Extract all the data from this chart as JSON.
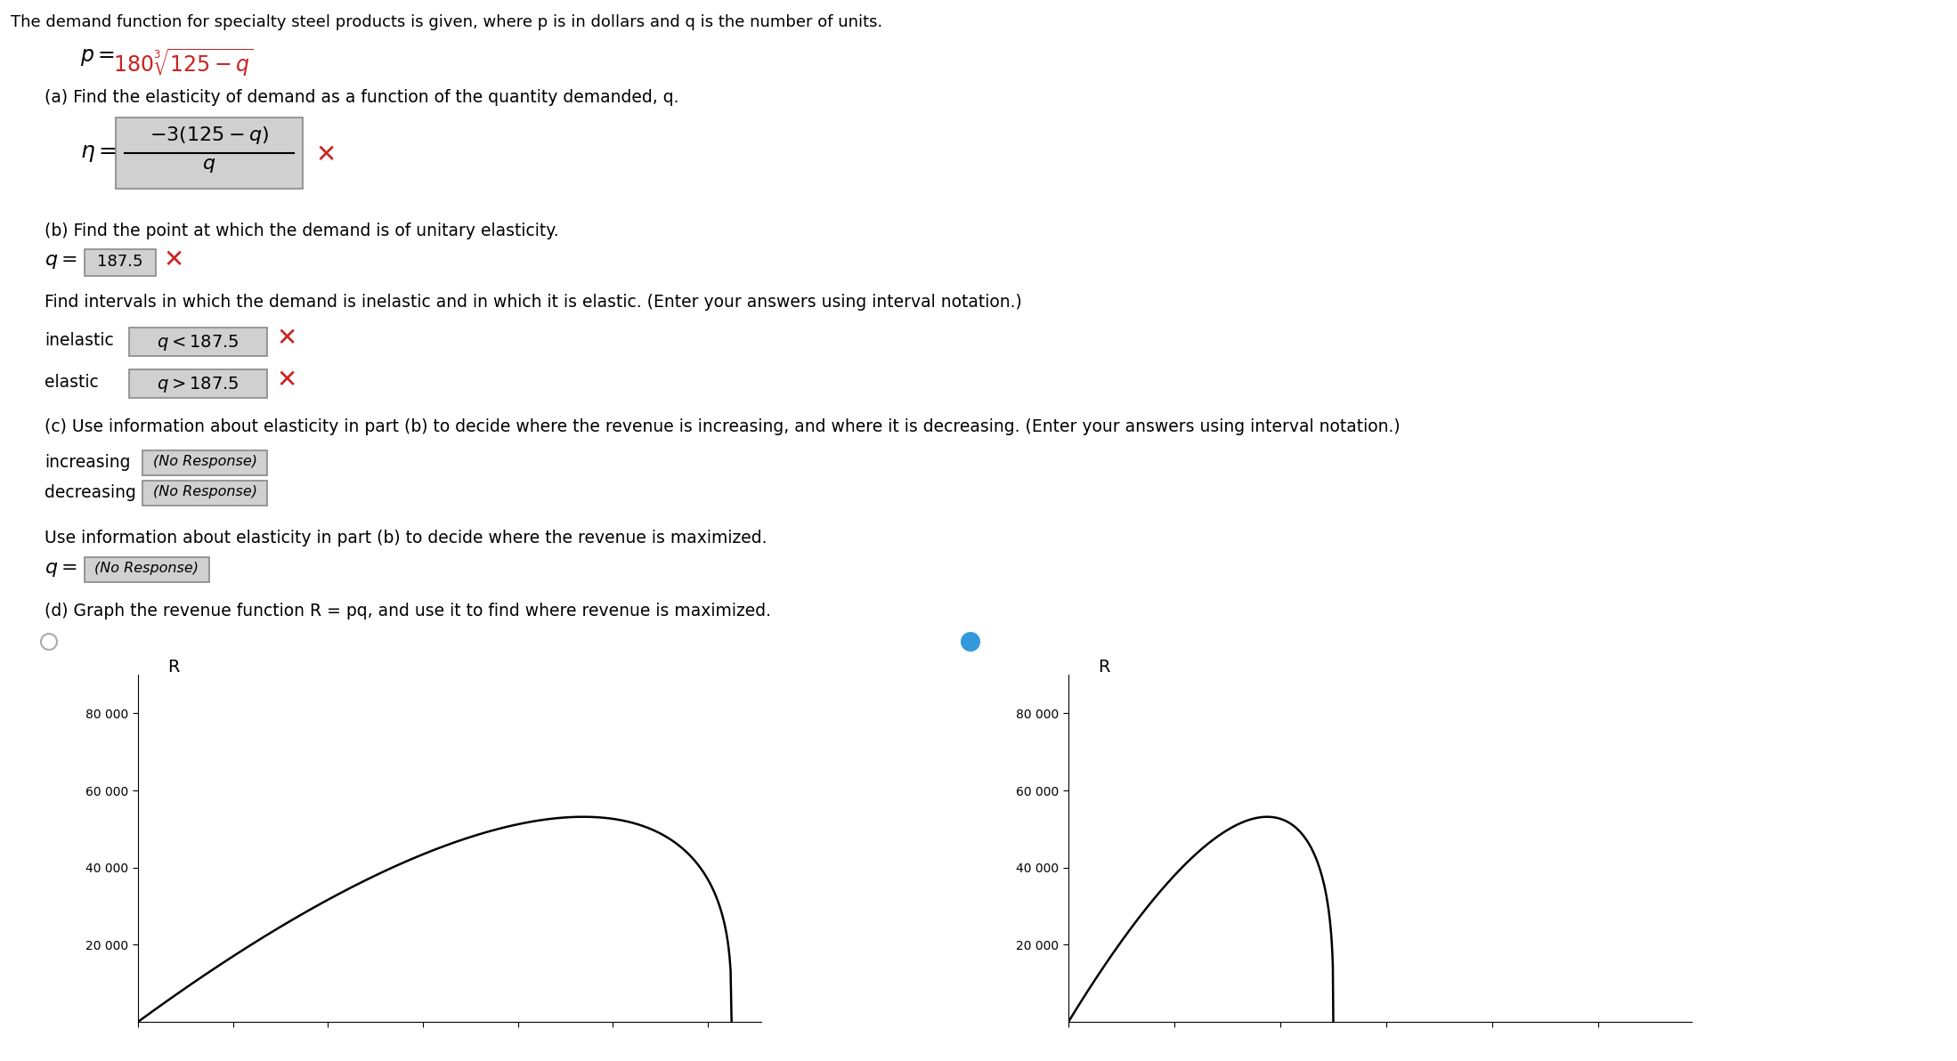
{
  "title_text": "The demand function for specialty steel products is given, where p is in dollars and q is the number of units.",
  "part_a_label": "(a) Find the elasticity of demand as a function of the quantity demanded, q.",
  "part_b_label": "(b) Find the point at which the demand is of unitary elasticity.",
  "q_value": "187.5",
  "intervals_label": "Find intervals in which the demand is inelastic and in which it is elastic. (Enter your answers using interval notation.)",
  "part_c_label": "(c) Use information about elasticity in part (b) to decide where the revenue is increasing, and where it is decreasing. (Enter your answers using interval notation.)",
  "max_label": "Use information about elasticity in part (b) to decide where the revenue is maximized.",
  "part_d_label": "(d) Graph the revenue function R = pq, and use it to find where revenue is maximized.",
  "bg_color": "#ffffff",
  "text_color": "#000000",
  "red_color": "#cc2222",
  "blue_color": "#3399dd",
  "box_facecolor": "#d0d0d0",
  "box_edgecolor": "#888888"
}
